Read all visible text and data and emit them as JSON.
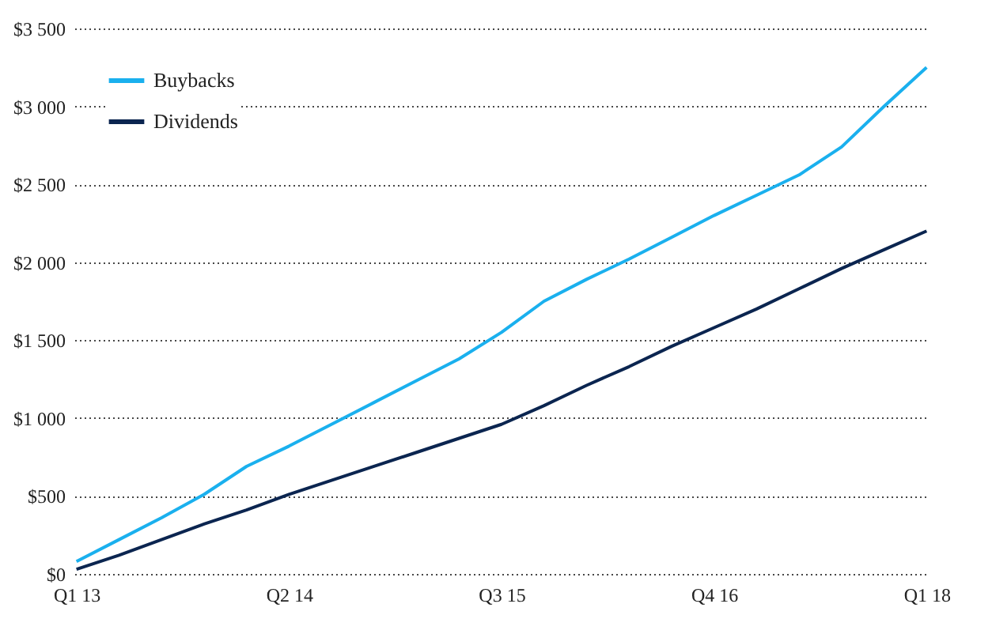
{
  "chart_data": {
    "type": "line",
    "categories": [
      "Q1 13",
      null,
      null,
      null,
      null,
      "Q2 14",
      null,
      null,
      null,
      null,
      "Q3 15",
      null,
      null,
      null,
      null,
      "Q4 16",
      null,
      null,
      null,
      null,
      "Q1 18"
    ],
    "series": [
      {
        "name": "Buybacks",
        "color": "#1ab0ee",
        "values": [
          80,
          220,
          360,
          510,
          690,
          820,
          960,
          1100,
          1240,
          1380,
          1550,
          1750,
          1890,
          2020,
          2160,
          2300,
          2430,
          2560,
          2740,
          3000,
          3250
        ]
      },
      {
        "name": "Dividends",
        "color": "#0b2550",
        "values": [
          30,
          120,
          220,
          320,
          410,
          510,
          600,
          690,
          780,
          870,
          960,
          1080,
          1210,
          1330,
          1460,
          1580,
          1700,
          1830,
          1960,
          2080,
          2200
        ]
      }
    ],
    "ylim": [
      0,
      3500
    ],
    "yticks": [
      {
        "value": 0,
        "label": "$0"
      },
      {
        "value": 500,
        "label": "$500"
      },
      {
        "value": 1000,
        "label": "$1 000"
      },
      {
        "value": 1500,
        "label": "$1 500"
      },
      {
        "value": 2000,
        "label": "$2 000"
      },
      {
        "value": 2500,
        "label": "$2 500"
      },
      {
        "value": 3000,
        "label": "$3 000"
      },
      {
        "value": 3500,
        "label": "$3 500"
      }
    ],
    "grid": "y",
    "legend": "top left",
    "line_style": "solid",
    "marker": "none"
  }
}
